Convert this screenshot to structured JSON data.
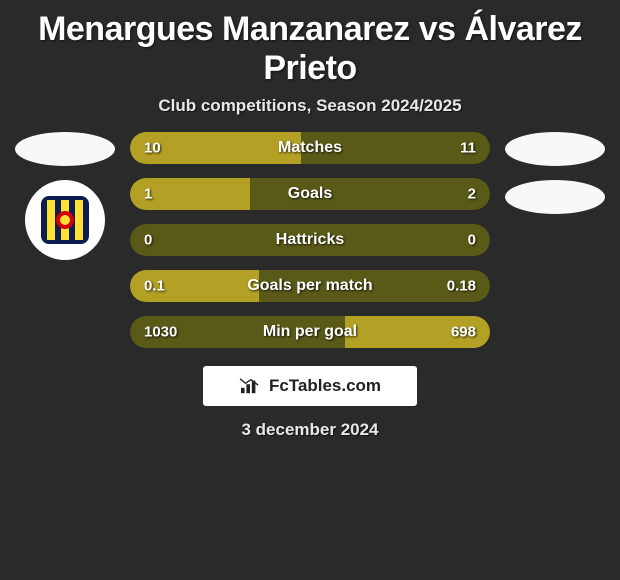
{
  "title": "Menargues Manzanarez vs Álvarez Prieto",
  "subtitle": "Club competitions, Season 2024/2025",
  "date": "3 december 2024",
  "attribution": "FcTables.com",
  "colors": {
    "background": "#2a2a2a",
    "bar_track": "#5a5a18",
    "bar_fill": "#b3a024",
    "text": "#ffffff",
    "attribution_bg": "#ffffff",
    "attribution_text": "#222222"
  },
  "player_left": {
    "name": "Menargues Manzanarez",
    "club_logo": "villarreal"
  },
  "player_right": {
    "name": "Álvarez Prieto",
    "club_logo": null
  },
  "stats": [
    {
      "label": "Matches",
      "left_value": "10",
      "right_value": "11",
      "left_pct": 47.6,
      "right_pct": 52.4,
      "fill_side": "left",
      "fill_pct": 47.6
    },
    {
      "label": "Goals",
      "left_value": "1",
      "right_value": "2",
      "left_pct": 33.3,
      "right_pct": 66.7,
      "fill_side": "left",
      "fill_pct": 33.3
    },
    {
      "label": "Hattricks",
      "left_value": "0",
      "right_value": "0",
      "left_pct": 50,
      "right_pct": 50,
      "fill_side": "none",
      "fill_pct": 0
    },
    {
      "label": "Goals per match",
      "left_value": "0.1",
      "right_value": "0.18",
      "left_pct": 35.7,
      "right_pct": 64.3,
      "fill_side": "left",
      "fill_pct": 35.7
    },
    {
      "label": "Min per goal",
      "left_value": "1030",
      "right_value": "698",
      "left_pct": 59.6,
      "right_pct": 40.4,
      "fill_side": "right",
      "fill_pct": 40.4
    }
  ]
}
